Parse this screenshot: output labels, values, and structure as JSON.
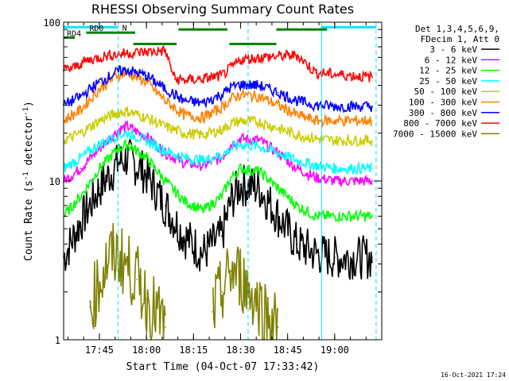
{
  "chart_data": {
    "type": "line",
    "title": "RHESSI Observing Summary Count Rates",
    "xlabel": "Start Time (04-Oct-07 17:33:42)",
    "ylabel_main": "Count Rate (s",
    "ylabel_sup": "-1",
    "ylabel_rest": " detector",
    "ylabel_end": ")",
    "yscale": "log",
    "ylim": [
      1,
      100
    ],
    "y_ticks": [
      "1",
      "10",
      "100"
    ],
    "xlim": [
      17.56,
      19.25
    ],
    "x_ticks": [
      {
        "value": 17.75,
        "label": "17:45"
      },
      {
        "value": 18.0,
        "label": "18:00"
      },
      {
        "value": 18.25,
        "label": "18:15"
      },
      {
        "value": 18.5,
        "label": "18:30"
      },
      {
        "value": 18.75,
        "label": "18:45"
      },
      {
        "value": 19.0,
        "label": "19:00"
      }
    ],
    "legend_header": [
      "Det 1,3,4,5,6,9,",
      "FDecim 1, Att 0"
    ],
    "legend_position": "top-right",
    "series": [
      {
        "name": "3 - 6 keV",
        "color": "#000000",
        "x": [
          17.56,
          17.65,
          17.75,
          17.85,
          17.9,
          18.0,
          18.1,
          18.2,
          18.3,
          18.4,
          18.45,
          18.5,
          18.6,
          18.7,
          18.8,
          18.9,
          19.0,
          19.1,
          19.2
        ],
        "y": [
          3.3,
          5.5,
          9,
          13,
          14,
          11,
          7,
          4.5,
          3.5,
          4.5,
          7.5,
          9.5,
          9,
          6,
          4,
          3.5,
          3.3,
          3.3,
          3.3
        ]
      },
      {
        "name": "6 - 12 keV",
        "color": "#ff00ff",
        "x": [
          17.56,
          17.65,
          17.75,
          17.85,
          17.9,
          18.0,
          18.1,
          18.2,
          18.3,
          18.4,
          18.45,
          18.5,
          18.6,
          18.7,
          18.8,
          18.9,
          19.0,
          19.1,
          19.2
        ],
        "y": [
          10,
          12,
          16,
          21,
          22,
          19,
          15,
          13,
          12.5,
          14,
          17,
          18.5,
          18,
          15,
          12,
          10.5,
          10,
          10,
          10
        ]
      },
      {
        "name": "12 - 25 keV",
        "color": "#00ff00",
        "x": [
          17.56,
          17.65,
          17.75,
          17.85,
          17.9,
          18.0,
          18.1,
          18.2,
          18.3,
          18.4,
          18.45,
          18.5,
          18.6,
          18.7,
          18.8,
          18.9,
          19.0,
          19.1,
          19.2
        ],
        "y": [
          6,
          8,
          12,
          16,
          17,
          14,
          10,
          7.5,
          6.5,
          8,
          10.5,
          12,
          11.5,
          9,
          7,
          6,
          6,
          6,
          6
        ]
      },
      {
        "name": "25 - 50 keV",
        "color": "#00ffff",
        "x": [
          17.56,
          17.65,
          17.75,
          17.85,
          17.9,
          18.0,
          18.1,
          18.2,
          18.3,
          18.4,
          18.45,
          18.5,
          18.6,
          18.7,
          18.8,
          18.9,
          19.0,
          19.1,
          19.2
        ],
        "y": [
          12,
          14,
          17,
          19.5,
          20,
          18,
          15.5,
          14,
          13.5,
          14.5,
          16,
          17,
          16.5,
          15,
          13.5,
          12.5,
          12,
          12,
          12
        ]
      },
      {
        "name": "50 - 100 keV",
        "color": "#cccc00",
        "x": [
          17.56,
          17.65,
          17.75,
          17.85,
          17.9,
          18.0,
          18.1,
          18.2,
          18.3,
          18.4,
          18.45,
          18.5,
          18.6,
          18.7,
          18.8,
          18.9,
          19.0,
          19.1,
          19.2
        ],
        "y": [
          18,
          20,
          24,
          27,
          27.5,
          25,
          22,
          20,
          19.5,
          21,
          23,
          24,
          23.5,
          21.5,
          19.5,
          18.5,
          18,
          18,
          18
        ]
      },
      {
        "name": "100 - 300 keV",
        "color": "#ff8000",
        "x": [
          17.56,
          17.65,
          17.75,
          17.85,
          17.9,
          18.0,
          18.1,
          18.2,
          18.3,
          18.4,
          18.45,
          18.5,
          18.6,
          18.7,
          18.8,
          18.9,
          19.0,
          19.1,
          19.2
        ],
        "y": [
          24,
          28,
          38,
          47,
          48,
          42,
          32,
          26,
          25,
          29,
          33,
          35,
          34,
          30,
          26,
          24,
          24,
          24,
          24
        ]
      },
      {
        "name": "300 - 800 keV",
        "color": "#0000ff",
        "x": [
          17.56,
          17.65,
          17.75,
          17.85,
          17.9,
          18.0,
          18.1,
          18.2,
          18.3,
          18.4,
          18.45,
          18.5,
          18.6,
          18.7,
          18.8,
          18.9,
          19.0,
          19.1,
          19.2
        ],
        "y": [
          30,
          34,
          42,
          49,
          50,
          46,
          38,
          32,
          31,
          35,
          39,
          40.5,
          40,
          36,
          32,
          30,
          29.5,
          29.5,
          29.5
        ]
      },
      {
        "name": "800 - 7000 keV",
        "color": "#ff0000",
        "x": [
          17.56,
          17.62,
          17.65,
          17.7,
          17.8,
          17.9,
          18.0,
          18.1,
          18.15,
          18.2,
          18.3,
          18.4,
          18.5,
          18.6,
          18.7,
          18.8,
          18.9,
          19.0,
          19.1,
          19.2
        ],
        "y": [
          50,
          52,
          55,
          58,
          62,
          64,
          65,
          66,
          44,
          43,
          44,
          46,
          58,
          60,
          61,
          62,
          48,
          47,
          46,
          45
        ]
      },
      {
        "name": "7000 - 15000 keV",
        "color": "#808000",
        "x": [
          17.56,
          17.7,
          17.75,
          17.8,
          17.85,
          17.9,
          17.95,
          18.0,
          18.05,
          18.1,
          18.15,
          18.2,
          18.3,
          18.35,
          18.4,
          18.45,
          18.5,
          18.55,
          18.6,
          18.65,
          18.7,
          18.75,
          19.2
        ],
        "y": [
          null,
          1.6,
          2.3,
          3.3,
          3.4,
          2.9,
          2.4,
          1.8,
          1.5,
          1.2,
          null,
          null,
          null,
          1.5,
          2.0,
          2.7,
          2.5,
          2.0,
          1.7,
          1.4,
          1.2,
          null,
          null
        ]
      }
    ],
    "cyan_lines": [
      {
        "label": "N",
        "x1": 17.56,
        "x2": 17.85,
        "y": 93
      },
      {
        "x1": 18.93,
        "x2": 19.22,
        "y": 93
      }
    ],
    "green_bars": [
      {
        "label": "RD4",
        "x1": 17.56,
        "x2": 17.62,
        "y": 80
      },
      {
        "label": "RD0",
        "x1": 17.68,
        "x2": 17.94,
        "y": 86
      },
      {
        "x1": 17.93,
        "x2": 18.16,
        "y": 73
      },
      {
        "x1": 18.17,
        "x2": 18.43,
        "y": 90
      },
      {
        "x1": 18.44,
        "x2": 18.69,
        "y": 73
      },
      {
        "x1": 18.69,
        "x2": 18.96,
        "y": 90
      }
    ],
    "cyan_vlines_solid": [
      17.56,
      18.93
    ],
    "cyan_vlines_dashed": [
      17.85,
      18.54,
      19.22
    ],
    "grid": false
  },
  "footer": {
    "timestamp": "16-Oct-2021 17:24"
  }
}
